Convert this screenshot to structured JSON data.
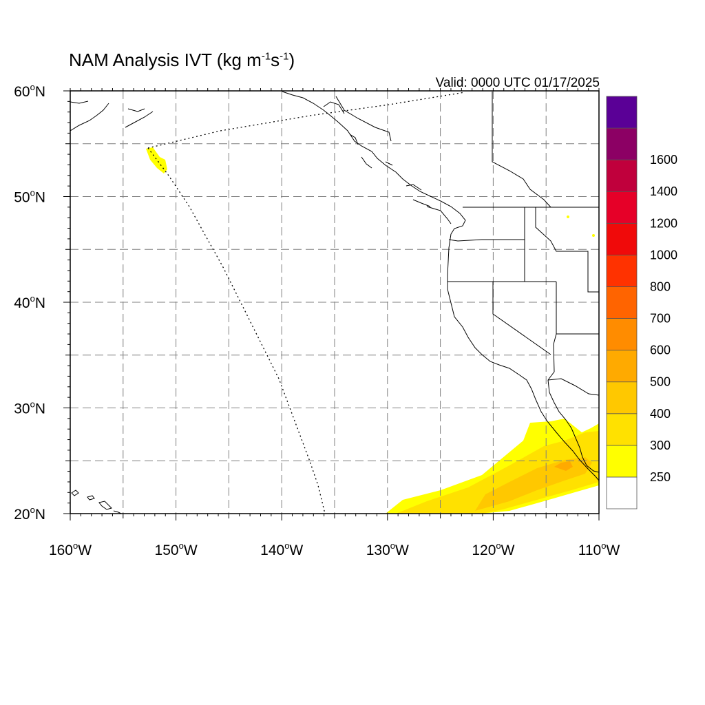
{
  "title": {
    "prefix": "NAM Analysis IVT (kg m",
    "exp1": "-1",
    "mid": "s",
    "exp2": "-1",
    "suffix": ")"
  },
  "valid_text": "Valid: 0000 UTC 01/17/2025",
  "map": {
    "lon_range": [
      -160,
      -110
    ],
    "lat_range": [
      20,
      60
    ],
    "lat_labels": [
      {
        "value": 60,
        "text": "60",
        "deg": "o",
        "hemi": "N"
      },
      {
        "value": 50,
        "text": "50",
        "deg": "o",
        "hemi": "N"
      },
      {
        "value": 40,
        "text": "40",
        "deg": "o",
        "hemi": "N"
      },
      {
        "value": 30,
        "text": "30",
        "deg": "o",
        "hemi": "N"
      },
      {
        "value": 20,
        "text": "20",
        "deg": "o",
        "hemi": "N"
      }
    ],
    "lon_labels": [
      {
        "value": -160,
        "text": "160",
        "deg": "o",
        "hemi": "W"
      },
      {
        "value": -150,
        "text": "150",
        "deg": "o",
        "hemi": "W"
      },
      {
        "value": -140,
        "text": "140",
        "deg": "o",
        "hemi": "W"
      },
      {
        "value": -130,
        "text": "130",
        "deg": "o",
        "hemi": "W"
      },
      {
        "value": -120,
        "text": "120",
        "deg": "o",
        "hemi": "W"
      },
      {
        "value": -110,
        "text": "110",
        "deg": "o",
        "hemi": "W"
      }
    ],
    "grid_lats": [
      25,
      30,
      35,
      40,
      45,
      50,
      55
    ],
    "grid_lons": [
      -155,
      -150,
      -145,
      -140,
      -135,
      -130,
      -125,
      -120,
      -115
    ],
    "grid_style": "dashed gray"
  },
  "colorbar": {
    "levels": [
      {
        "label": "",
        "color": "#ffffff"
      },
      {
        "label": "250",
        "color": "#ffff00"
      },
      {
        "label": "300",
        "color": "#ffe100"
      },
      {
        "label": "400",
        "color": "#ffc800"
      },
      {
        "label": "500",
        "color": "#ffaa00"
      },
      {
        "label": "600",
        "color": "#ff8c00"
      },
      {
        "label": "700",
        "color": "#ff6400"
      },
      {
        "label": "800",
        "color": "#ff3200"
      },
      {
        "label": "1000",
        "color": "#f00a0a"
      },
      {
        "label": "1200",
        "color": "#e60028"
      },
      {
        "label": "1400",
        "color": "#c0003c"
      },
      {
        "label": "1600",
        "color": "#8c0064"
      },
      {
        "label": "",
        "color": "#5a0096"
      }
    ]
  },
  "ivt_regions": [
    {
      "level": 250,
      "color": "#ffff00"
    },
    {
      "level": 300,
      "color": "#ffe100"
    },
    {
      "level": 400,
      "color": "#ffc800"
    },
    {
      "level": 500,
      "color": "#ffaa00"
    }
  ]
}
